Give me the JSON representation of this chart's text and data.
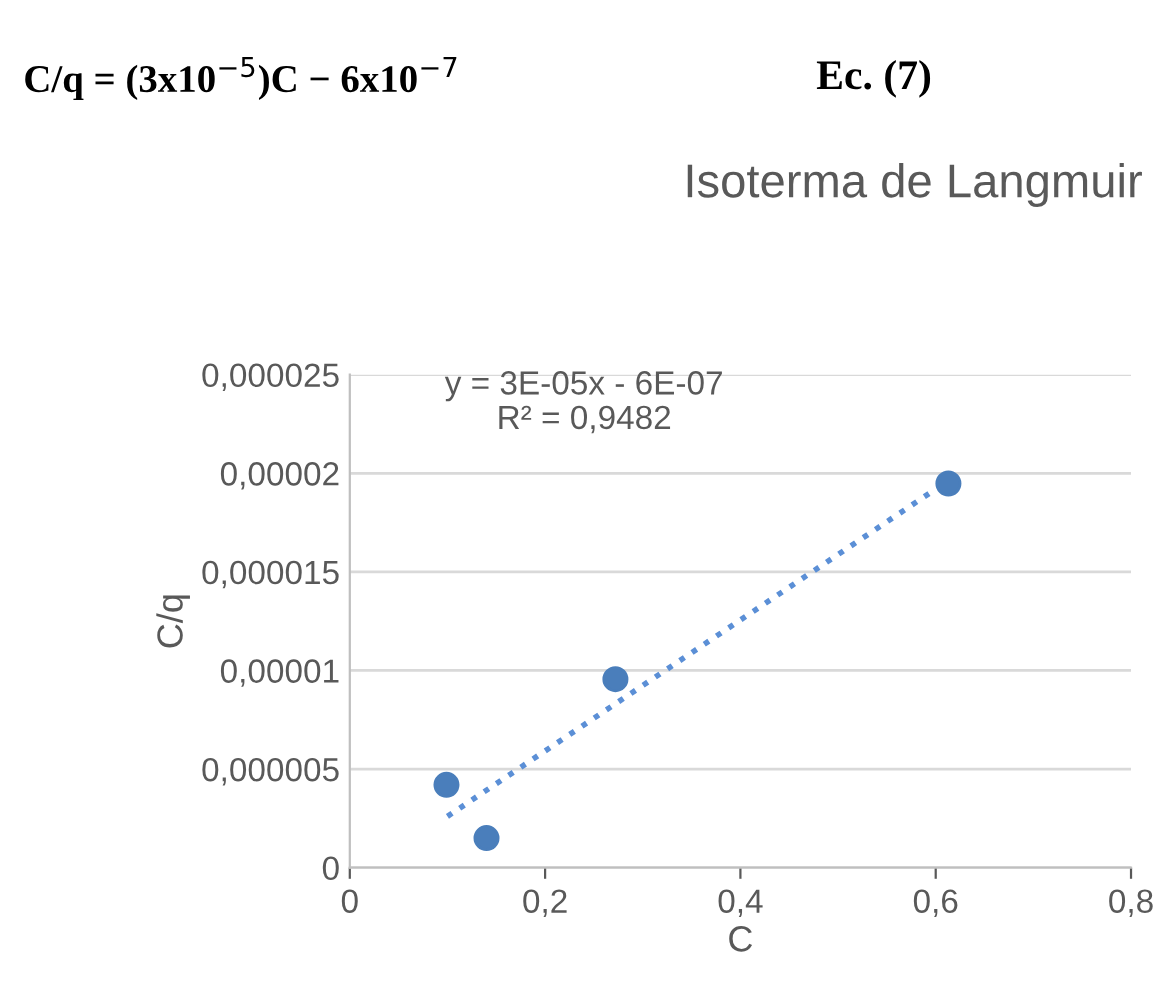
{
  "chart_data": {
    "type": "scatter",
    "title": "Isoterma de Langmuir",
    "xlabel": "C",
    "ylabel": "C/q",
    "annotations": [
      "C/q = (3x10$^{−5}$)C − 6x10$^{−7}$",
      "Ec. (7)",
      "y = 3E-05x - 6E-07",
      "R² = 0,9482"
    ],
    "series": [
      {
        "color": "#4a7ebb",
        "x": [
          0.099,
          0.14,
          0.272,
          0.613
        ],
        "values": [
          4.2e-06,
          1.5e-06,
          9.56e-06,
          1.948e-05
        ],
        "marker": "circle"
      },
      {
        "type": "line",
        "color": "#5b8fd6",
        "x": [
          0.1,
          0.6
        ],
        "values": [
          2.6e-06,
          1.92e-05
        ],
        "line_style": "dotted",
        "marker": "none"
      }
    ],
    "xlim": [
      0,
      0.8
    ],
    "xticks": [
      0,
      {
        "value": 0.2,
        "label": "0,2"
      },
      {
        "value": 0.4,
        "label": "0,4"
      },
      {
        "value": 0.6,
        "label": "0,6"
      },
      {
        "value": 0.8,
        "label": "0,8"
      }
    ],
    "ylim": [
      0,
      2.5e-05
    ],
    "yticks": [
      0,
      {
        "value": 5e-06,
        "label": "0,000005"
      },
      {
        "value": 1e-05,
        "label": "0,00001"
      },
      {
        "value": 1.5e-05,
        "label": "0,000015"
      },
      {
        "value": 2e-05,
        "label": "0,00002"
      },
      {
        "value": 2.5e-05,
        "label": "0,000025"
      }
    ],
    "grid": "y",
    "legend": false
  }
}
